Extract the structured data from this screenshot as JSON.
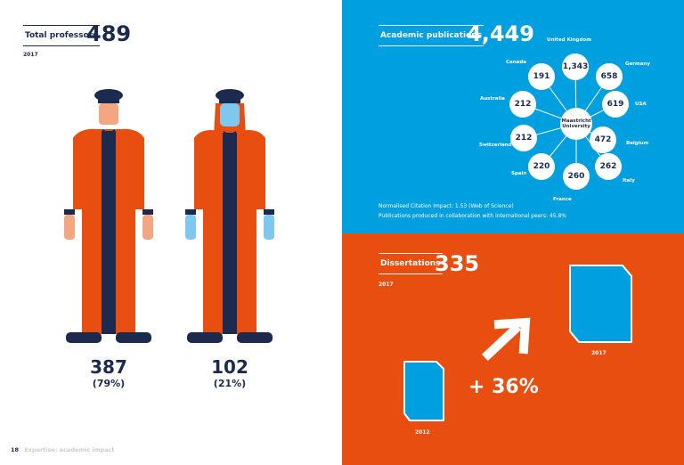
{
  "professors": {
    "label": "Total professors",
    "total": "489",
    "year": "2017",
    "male": {
      "count": "387",
      "pct": "(79%)"
    },
    "female": {
      "count": "102",
      "pct": "(21%)"
    }
  },
  "publications": {
    "label": "Academic publications",
    "total": "4,449",
    "center": "Maastricht University",
    "countries": [
      {
        "name": "United Kingdom",
        "value": "1,343"
      },
      {
        "name": "Germany",
        "value": "658"
      },
      {
        "name": "USA",
        "value": "619"
      },
      {
        "name": "Belgium",
        "value": "472"
      },
      {
        "name": "Italy",
        "value": "262"
      },
      {
        "name": "France",
        "value": "260"
      },
      {
        "name": "Spain",
        "value": "220"
      },
      {
        "name": "Switzerland",
        "value": "212"
      },
      {
        "name": "Australia",
        "value": "212"
      },
      {
        "name": "Canada",
        "value": "191"
      }
    ],
    "note1": "Normalised Citation Impact: 1.53 (Web of Science)",
    "note2": "Publications produced in collaboration with international peers: 45.8%"
  },
  "dissertations": {
    "label": "Dissertations",
    "total": "335",
    "year": "2017",
    "growth": "+ 36%",
    "year_old": "2012",
    "year_new": "2017"
  },
  "footer": {
    "page": "18",
    "section": "Expertise: academic impact"
  },
  "colors": {
    "navy": "#1b2a4e",
    "orange": "#e84e0f",
    "blue": "#009fe0"
  }
}
